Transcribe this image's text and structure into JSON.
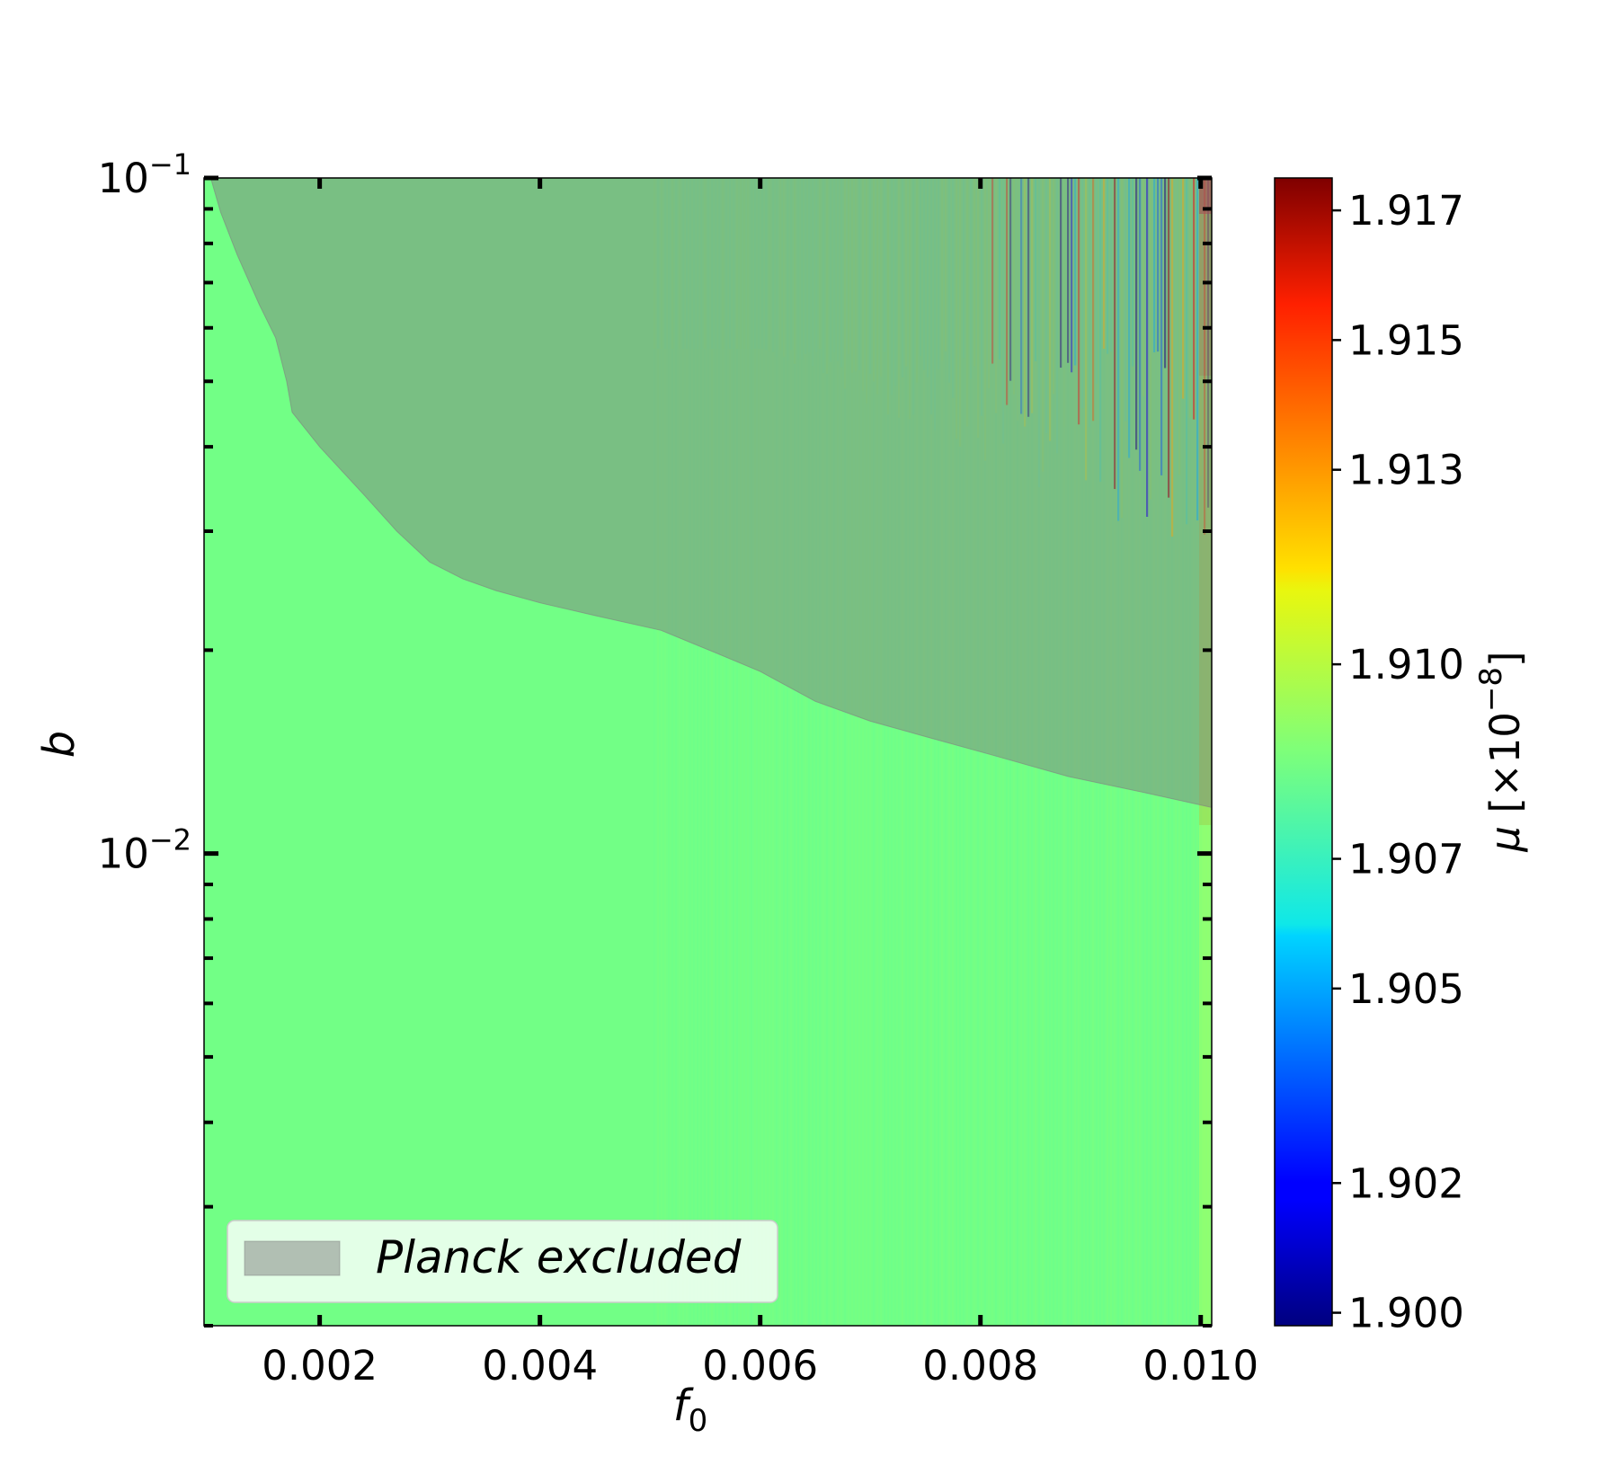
{
  "chart_data": {
    "type": "heatmap",
    "title": "",
    "xlabel": "f",
    "xlabel_sub": "0",
    "ylabel": "b",
    "x_scale": "linear",
    "y_scale": "log",
    "xlim": [
      0.00095,
      0.0101
    ],
    "ylim": [
      0.002,
      0.1
    ],
    "x_ticks": [
      {
        "value": 0.002,
        "label": "0.002"
      },
      {
        "value": 0.004,
        "label": "0.004"
      },
      {
        "value": 0.006,
        "label": "0.006"
      },
      {
        "value": 0.008,
        "label": "0.008"
      },
      {
        "value": 0.01,
        "label": "0.010"
      }
    ],
    "y_ticks": [
      {
        "value": 0.1,
        "base": "10",
        "exp": "−1"
      },
      {
        "value": 0.01,
        "base": "10",
        "exp": "−2"
      }
    ],
    "colorbar": {
      "label_symbol": "μ",
      "label_unit": "[×10",
      "label_exp": "−8",
      "label_close": "]",
      "colormap": "jet",
      "range": [
        1.8998,
        1.9175
      ],
      "ticks": [
        "1.900",
        "1.902",
        "1.905",
        "1.907",
        "1.910",
        "1.913",
        "1.915",
        "1.917"
      ]
    },
    "field": {
      "base_value": 1.9085,
      "note_bands": "striped vertical bands with values spanning the full colorbar appear near the top for f0 > 0.0075"
    },
    "excluded_region": {
      "name": "Planck excluded",
      "color": "#808080",
      "opacity": 0.5,
      "boundary": [
        {
          "x": 0.00101,
          "y": 0.1
        },
        {
          "x": 0.0011,
          "y": 0.089
        },
        {
          "x": 0.00125,
          "y": 0.077
        },
        {
          "x": 0.00145,
          "y": 0.065
        },
        {
          "x": 0.0016,
          "y": 0.058
        },
        {
          "x": 0.0017,
          "y": 0.05
        },
        {
          "x": 0.00175,
          "y": 0.045
        },
        {
          "x": 0.002,
          "y": 0.04
        },
        {
          "x": 0.0024,
          "y": 0.034
        },
        {
          "x": 0.0027,
          "y": 0.03
        },
        {
          "x": 0.003,
          "y": 0.027
        },
        {
          "x": 0.0033,
          "y": 0.0255
        },
        {
          "x": 0.0036,
          "y": 0.0245
        },
        {
          "x": 0.004,
          "y": 0.0235
        },
        {
          "x": 0.0045,
          "y": 0.0225
        },
        {
          "x": 0.0051,
          "y": 0.0214
        },
        {
          "x": 0.0056,
          "y": 0.0198
        },
        {
          "x": 0.006,
          "y": 0.0186
        },
        {
          "x": 0.0065,
          "y": 0.0168
        },
        {
          "x": 0.007,
          "y": 0.0157
        },
        {
          "x": 0.0075,
          "y": 0.0149
        },
        {
          "x": 0.0081,
          "y": 0.014
        },
        {
          "x": 0.0088,
          "y": 0.013
        },
        {
          "x": 0.0095,
          "y": 0.0123
        },
        {
          "x": 0.0101,
          "y": 0.0117
        }
      ]
    },
    "legend": {
      "position": "lower-left",
      "entries": [
        "Planck excluded"
      ]
    }
  }
}
